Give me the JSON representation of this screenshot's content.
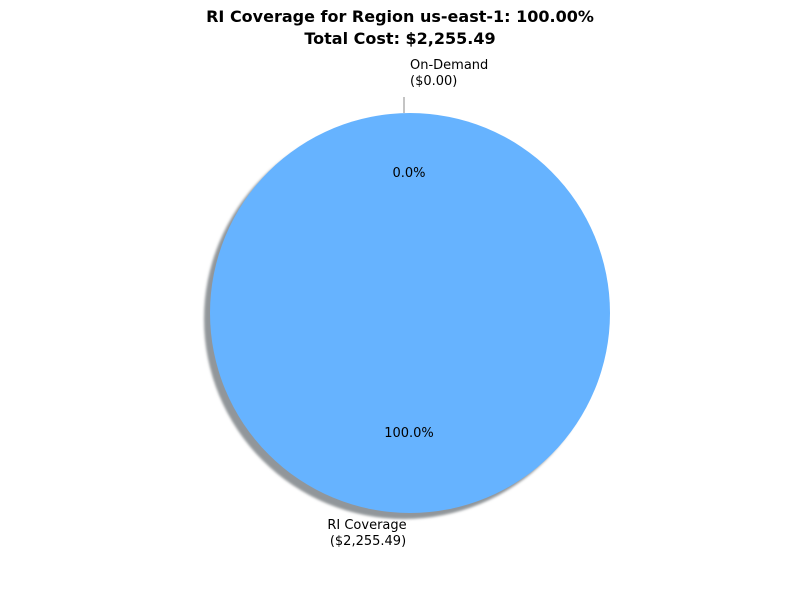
{
  "chart_data": {
    "type": "pie",
    "title_line1": "RI Coverage for Region us-east-1: 100.00%",
    "title_line2": "Total Cost: $2,255.49",
    "shadow": true,
    "slices": [
      {
        "name": "On-Demand",
        "amount_label": "($0.00)",
        "value": 0.0,
        "percent_label": "0.0%",
        "color": "#ff9999"
      },
      {
        "name": "RI Coverage",
        "amount_label": "($2,255.49)",
        "value": 2255.49,
        "percent_label": "100.0%",
        "color": "#66b3ff"
      }
    ]
  }
}
